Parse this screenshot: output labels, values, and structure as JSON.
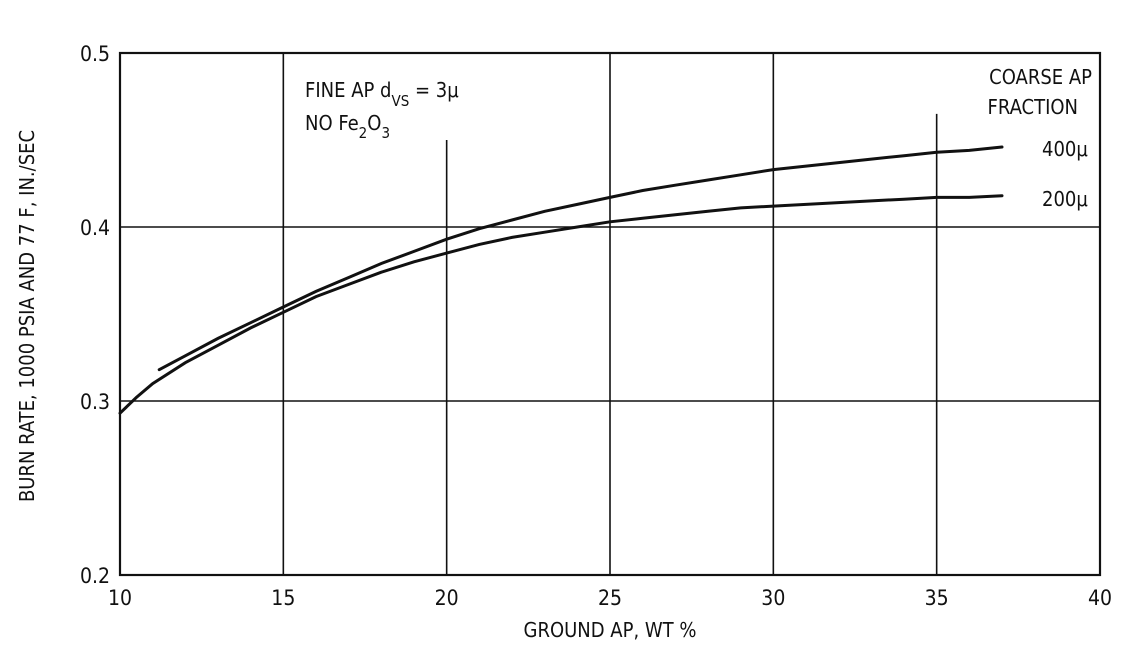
{
  "chart_data": {
    "type": "line",
    "xlabel": "GROUND AP, WT %",
    "ylabel": "BURN RATE, 1000 PSIA AND 77 F, IN./SEC",
    "xlim": [
      10,
      40
    ],
    "ylim": [
      0.2,
      0.5
    ],
    "x_ticks": [
      "10",
      "15",
      "20",
      "25",
      "30",
      "35",
      "40"
    ],
    "y_ticks": [
      "0.2",
      "0.3",
      "0.4",
      "0.5"
    ],
    "grid": true,
    "annotation": {
      "line1_prefix": "FINE AP d",
      "line1_sub": "VS",
      "line1_suffix": " = 3μ",
      "line2_prefix": "NO Fe",
      "line2_sub1": "2",
      "line2_mid": "O",
      "line2_sub2": "3"
    },
    "legend_title": [
      "COARSE AP",
      "FRACTION"
    ],
    "series": [
      {
        "name": "400μ",
        "x": [
          11.2,
          12,
          13,
          14,
          15,
          16,
          17,
          18,
          19,
          20,
          21,
          22,
          23,
          24,
          25,
          26,
          27,
          28,
          29,
          30,
          31,
          32,
          33,
          34,
          35,
          36,
          37
        ],
        "y": [
          0.318,
          0.326,
          0.336,
          0.345,
          0.354,
          0.363,
          0.371,
          0.379,
          0.386,
          0.393,
          0.399,
          0.404,
          0.409,
          0.413,
          0.417,
          0.421,
          0.424,
          0.427,
          0.43,
          0.433,
          0.435,
          0.437,
          0.439,
          0.441,
          0.443,
          0.444,
          0.446
        ]
      },
      {
        "name": "200μ",
        "x": [
          10,
          10.5,
          11,
          12,
          13,
          14,
          15,
          16,
          17,
          18,
          19,
          20,
          21,
          22,
          23,
          24,
          25,
          26,
          27,
          28,
          29,
          30,
          31,
          32,
          33,
          34,
          35,
          36,
          37
        ],
        "y": [
          0.293,
          0.302,
          0.31,
          0.322,
          0.332,
          0.342,
          0.351,
          0.36,
          0.367,
          0.374,
          0.38,
          0.385,
          0.39,
          0.394,
          0.397,
          0.4,
          0.403,
          0.405,
          0.407,
          0.409,
          0.411,
          0.412,
          0.413,
          0.414,
          0.415,
          0.416,
          0.417,
          0.417,
          0.418
        ]
      }
    ]
  }
}
